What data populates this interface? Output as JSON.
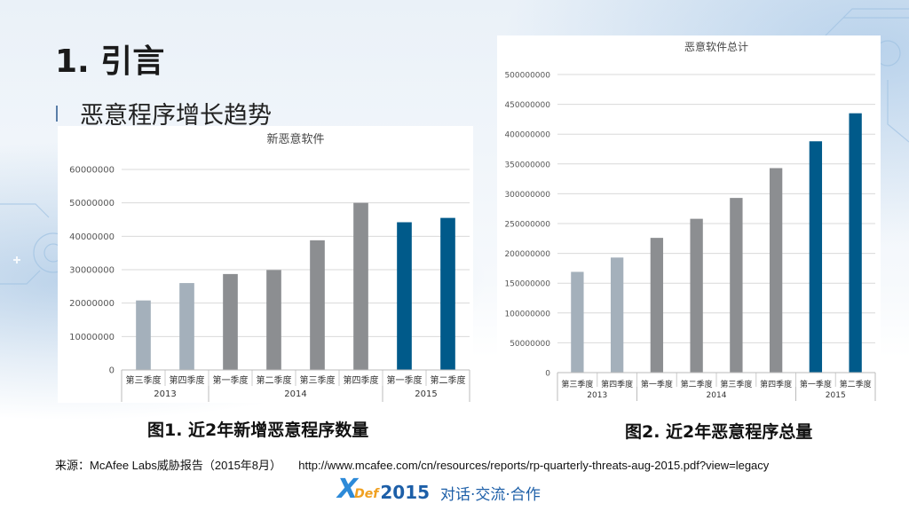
{
  "slide": {
    "title": "1. 引言",
    "subtitle": "恶意程序增长趋势",
    "caption1": "图1. 近2年新增恶意程序数量",
    "caption2": "图2. 近2年恶意程序总量",
    "source_label": "来源：McAfee Labs威胁报告（2015年8月）",
    "source_url": "http://www.mcafee.com/cn/resources/reports/rp-quarterly-threats-aug-2015.pdf?view=legacy",
    "logo": {
      "mark": "X",
      "def": "Def",
      "year": "2015",
      "tagline": "对话·交流·合作"
    }
  },
  "colors": {
    "year2013": "#a4b0bb",
    "year2014": "#8c8e91",
    "year2015": "#005a8a"
  },
  "chart_data": [
    {
      "type": "bar",
      "title": "新恶意软件",
      "categories": [
        "第三季度",
        "第四季度",
        "第一季度",
        "第二季度",
        "第三季度",
        "第四季度",
        "第一季度",
        "第二季度"
      ],
      "groups": [
        {
          "label": "2013",
          "count": 2
        },
        {
          "label": "2014",
          "count": 4
        },
        {
          "label": "2015",
          "count": 2
        }
      ],
      "values": [
        20800000,
        26000000,
        28700000,
        29900000,
        38800000,
        50000000,
        44200000,
        45500000
      ],
      "yticks": [
        0,
        10000000,
        20000000,
        30000000,
        40000000,
        50000000,
        60000000
      ],
      "ylim": [
        0,
        60000000
      ],
      "grid": true
    },
    {
      "type": "bar",
      "title": "恶意软件总计",
      "categories": [
        "第三季度",
        "第四季度",
        "第一季度",
        "第二季度",
        "第三季度",
        "第四季度",
        "第一季度",
        "第二季度"
      ],
      "groups": [
        {
          "label": "2013",
          "count": 2
        },
        {
          "label": "2014",
          "count": 4
        },
        {
          "label": "2015",
          "count": 2
        }
      ],
      "values": [
        169000000,
        193000000,
        226000000,
        258000000,
        293000000,
        343000000,
        388000000,
        435000000
      ],
      "yticks": [
        0,
        50000000,
        100000000,
        150000000,
        200000000,
        250000000,
        300000000,
        350000000,
        400000000,
        450000000,
        500000000
      ],
      "ylim": [
        0,
        500000000
      ],
      "grid": true
    }
  ]
}
